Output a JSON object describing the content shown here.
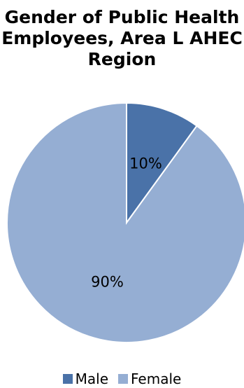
{
  "chart_data": {
    "type": "pie",
    "title_lines": [
      "Gender of Public Health",
      "Employees, Area L AHEC",
      "Region"
    ],
    "slices": [
      {
        "name": "Male",
        "value": 10,
        "label": "10%",
        "color": "#4a72a8"
      },
      {
        "name": "Female",
        "value": 90,
        "label": "90%",
        "color": "#95aed3"
      }
    ],
    "legend_position": "bottom"
  }
}
